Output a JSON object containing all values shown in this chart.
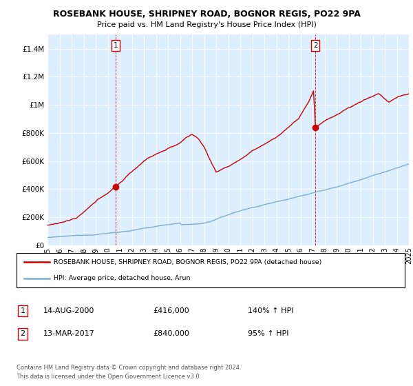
{
  "title": "ROSEBANK HOUSE, SHRIPNEY ROAD, BOGNOR REGIS, PO22 9PA",
  "subtitle": "Price paid vs. HM Land Registry's House Price Index (HPI)",
  "ylim": [
    0,
    1500000
  ],
  "yticks": [
    0,
    200000,
    400000,
    600000,
    800000,
    1000000,
    1200000,
    1400000
  ],
  "ytick_labels": [
    "£0",
    "£200K",
    "£400K",
    "£600K",
    "£800K",
    "£1M",
    "£1.2M",
    "£1.4M"
  ],
  "red_color": "#cc0000",
  "blue_color": "#7aafd4",
  "plot_bg_color": "#ddeeff",
  "marker1_idx": 68,
  "marker1_value": 416000,
  "marker2_idx": 267,
  "marker2_value": 840000,
  "legend_red": "ROSEBANK HOUSE, SHRIPNEY ROAD, BOGNOR REGIS, PO22 9PA (detached house)",
  "legend_blue": "HPI: Average price, detached house, Arun",
  "table_rows": [
    {
      "num": "1",
      "date": "14-AUG-2000",
      "price": "£416,000",
      "hpi": "140% ↑ HPI"
    },
    {
      "num": "2",
      "date": "13-MAR-2017",
      "price": "£840,000",
      "hpi": "95% ↑ HPI"
    }
  ],
  "footnote1": "Contains HM Land Registry data © Crown copyright and database right 2024.",
  "footnote2": "This data is licensed under the Open Government Licence v3.0.",
  "start_year": 1995,
  "end_year": 2025,
  "num_months": 361
}
